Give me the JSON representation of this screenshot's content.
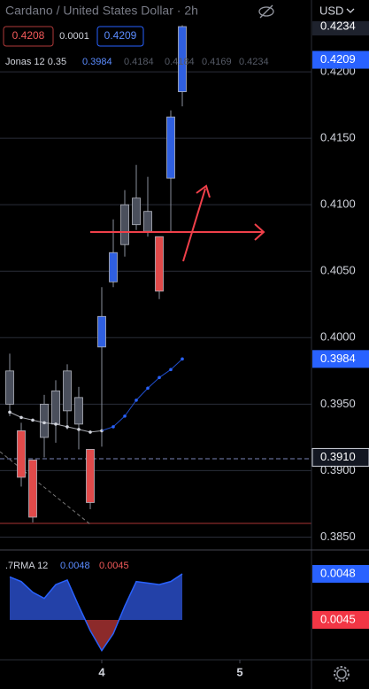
{
  "header": {
    "title": "Cardano / United States Dollar · 2h",
    "bid": "0.4208",
    "spread": "0.0001",
    "ask": "0.4209",
    "currency": "USD"
  },
  "chart_data": {
    "type": "candlestick",
    "open": [
      0.3975,
      0.393,
      0.3908,
      0.395,
      0.396,
      0.3975,
      0.3955,
      0.3916,
      0.3993,
      0.4042,
      0.407,
      0.4085,
      0.408,
      0.4076,
      0.412,
      0.4185
    ],
    "high": [
      0.3988,
      0.3936,
      0.3908,
      0.3957,
      0.3968,
      0.398,
      0.3963,
      0.3916,
      0.4038,
      0.4089,
      0.4111,
      0.413,
      0.4121,
      0.4076,
      0.4171,
      0.4235
    ],
    "low": [
      0.3941,
      0.3888,
      0.3861,
      0.391,
      0.3921,
      0.3931,
      0.3916,
      0.3871,
      0.3918,
      0.4038,
      0.4061,
      0.4081,
      0.4076,
      0.4029,
      0.408,
      0.4174
    ],
    "close": [
      0.395,
      0.3895,
      0.3865,
      0.3925,
      0.3935,
      0.3945,
      0.3935,
      0.3876,
      0.4016,
      0.4064,
      0.41,
      0.4105,
      0.4095,
      0.4035,
      0.4166,
      0.4234
    ],
    "candle_colors": [
      "#4a4f5c",
      "#e04a4a",
      "#e04a4a",
      "#4a4f5c",
      "#4a4f5c",
      "#4a4f5c",
      "#4a4f5c",
      "#e04a4a",
      "#2f5fe0",
      "#2f5fe0",
      "#4a4f5c",
      "#4a4f5c",
      "#4a4f5c",
      "#e04a4a",
      "#2f5fe0",
      "#2f5fe0"
    ],
    "xlim": [
      -0.846,
      26.23
    ],
    "xticks": [
      {
        "value": 8,
        "label": "4"
      },
      {
        "value": 20,
        "label": "5"
      }
    ],
    "ylim": [
      0.3841,
      0.4254
    ],
    "yticks": [
      {
        "value": 0.385,
        "label": "0.3850"
      },
      {
        "value": 0.39,
        "label": "0.3900"
      },
      {
        "value": 0.395,
        "label": "0.3950"
      },
      {
        "value": 0.4,
        "label": "0.4000"
      },
      {
        "value": 0.405,
        "label": "0.4050"
      },
      {
        "value": 0.41,
        "label": "0.4100"
      },
      {
        "value": 0.415,
        "label": "0.4150"
      },
      {
        "value": 0.42,
        "label": "0.4200"
      }
    ],
    "grid": true,
    "legend": {
      "name": "Jonas 12 0.35",
      "values": [
        0.3984,
        0.4184,
        0.4184,
        0.4169,
        0.4234
      ]
    },
    "ma": {
      "values": [
        0.3944,
        0.394,
        0.3938,
        0.3936,
        0.3935,
        0.3933,
        0.3931,
        0.3929,
        0.393,
        0.3933,
        0.3941,
        0.3953,
        0.3962,
        0.397,
        0.3976,
        0.3984
      ],
      "colors": [
        "#d1d4dc",
        "#d1d4dc",
        "#d1d4dc",
        "#d1d4dc",
        "#d1d4dc",
        "#d1d4dc",
        "#d1d4dc",
        "#d1d4dc",
        "#d1d4dc",
        "#2962ff",
        "#2962ff",
        "#2962ff",
        "#2962ff",
        "#2962ff",
        "#2962ff",
        "#2962ff"
      ]
    },
    "price_labels": [
      {
        "value": 0.4234,
        "label": "0.4234",
        "color": "#1e222d"
      },
      {
        "value": 0.4209,
        "label": "0.4209",
        "color": "#2962ff"
      },
      {
        "value": 0.3984,
        "label": "0.3984",
        "color": "#2962ff"
      },
      {
        "value": 0.391,
        "label": "0.3910",
        "color": "#131722"
      }
    ],
    "indicator": {
      "type": "area",
      "name": ".7RMA 12",
      "legend_values": [
        0.0048,
        0.0045
      ],
      "values": [
        0.00478,
        0.00475,
        0.00468,
        0.00464,
        0.00473,
        0.00476,
        0.00459,
        0.00443,
        0.0043,
        0.00441,
        0.00459,
        0.00475,
        0.00474,
        0.00473,
        0.00475,
        0.0048
      ],
      "baseline": 0.0045,
      "ylim": [
        0.00424,
        0.00495
      ],
      "colors": {
        "above": "#2341a8",
        "below": "#8c2a2a"
      },
      "price_labels": [
        {
          "value": 0.0048,
          "label": "0.0048",
          "color": "#2962ff"
        },
        {
          "value": 0.0045,
          "label": "0.0045",
          "color": "#f23645"
        }
      ]
    }
  }
}
